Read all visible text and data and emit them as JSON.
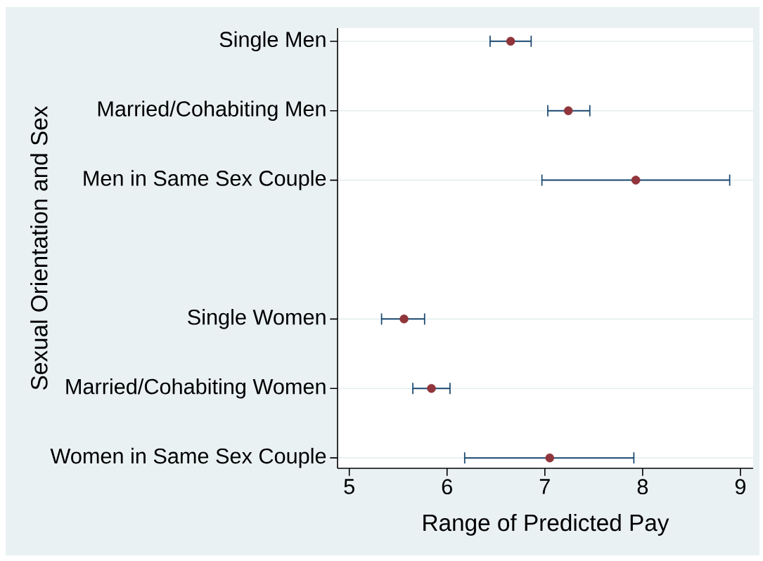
{
  "chart_data": {
    "type": "scatter",
    "orientation": "horizontal",
    "categories": [
      "Single Men",
      "Married/Cohabiting Men",
      "Men in Same Sex Couple",
      null,
      "Single Women",
      "Married/Cohabiting Women",
      "Women in Same Sex Couple"
    ],
    "values": [
      6.65,
      7.24,
      7.93,
      null,
      5.56,
      5.84,
      7.05
    ],
    "errors": [
      [
        6.44,
        6.86
      ],
      [
        7.03,
        7.46
      ],
      [
        6.97,
        8.89
      ],
      null,
      [
        5.33,
        5.77
      ],
      [
        5.65,
        6.03
      ],
      [
        6.18,
        7.91
      ]
    ],
    "color": "#90353b",
    "xlim": [
      4.88,
      9.13
    ],
    "xticks": [
      5,
      6,
      7,
      8,
      9
    ],
    "xlabel": "Range of Predicted Pay",
    "ylabel": "Sexual Orientation and Sex",
    "grid": "y"
  }
}
